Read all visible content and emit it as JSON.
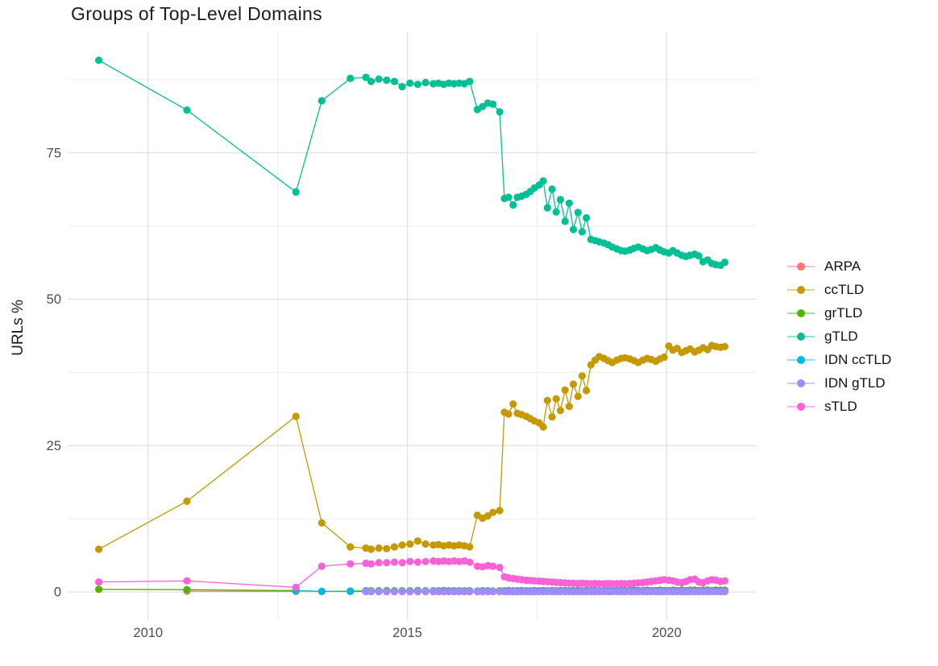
{
  "title": "Groups of Top-Level Domains",
  "axes": {
    "y_title": "URLs %",
    "x_tick_labels": [
      "2010",
      "2015",
      "2020"
    ],
    "y_tick_labels": [
      "0",
      "25",
      "50",
      "75"
    ]
  },
  "style": {
    "grid_major_color": "#e2e2e2",
    "grid_minor_color": "#f0f0f0",
    "axis_text_color": "#4d4d4d",
    "text_color": "#1c1c1c"
  },
  "chart_data": {
    "type": "line",
    "title": "Groups of Top-Level Domains",
    "xlabel": "",
    "ylabel": "URLs %",
    "legend_position": "right",
    "grid": true,
    "x_ticks": [
      2010,
      2015,
      2020
    ],
    "x_minor": [
      2012.5,
      2017.5
    ],
    "y_ticks": [
      0,
      25,
      50,
      75
    ],
    "y_minor": [
      12.5,
      37.5,
      62.5,
      87.5
    ],
    "xlim": [
      2008.45,
      2021.72
    ],
    "ylim": [
      -4.8,
      95.6
    ],
    "x": [
      2009.05,
      2010.75,
      2012.85,
      2013.35,
      2013.9,
      2014.2,
      2014.3,
      2014.45,
      2014.6,
      2014.75,
      2014.9,
      2015.05,
      2015.2,
      2015.35,
      2015.5,
      2015.6,
      2015.7,
      2015.8,
      2015.9,
      2016.0,
      2016.1,
      2016.2,
      2016.35,
      2016.45,
      2016.55,
      2016.65,
      2016.78,
      2016.87,
      2016.95,
      2017.04,
      2017.12,
      2017.2,
      2017.29,
      2017.37,
      2017.45,
      2017.54,
      2017.62,
      2017.7,
      2017.79,
      2017.87,
      2017.95,
      2018.04,
      2018.12,
      2018.2,
      2018.29,
      2018.37,
      2018.45,
      2018.54,
      2018.62,
      2018.7,
      2018.79,
      2018.87,
      2018.95,
      2019.04,
      2019.12,
      2019.2,
      2019.29,
      2019.37,
      2019.45,
      2019.54,
      2019.62,
      2019.7,
      2019.79,
      2019.87,
      2019.95,
      2020.04,
      2020.12,
      2020.2,
      2020.29,
      2020.37,
      2020.45,
      2020.54,
      2020.62,
      2020.7,
      2020.79,
      2020.87,
      2020.95,
      2021.04,
      2021.12
    ],
    "series": [
      {
        "name": "ARPA",
        "color": "#F8766D",
        "values": [
          null,
          0.15,
          0.1,
          null,
          null,
          null,
          null,
          null,
          null,
          null,
          null,
          null,
          null,
          null,
          null,
          null,
          null,
          null,
          null,
          null,
          null,
          null,
          null,
          null,
          null,
          null,
          null,
          null,
          null,
          null,
          null,
          null,
          null,
          null,
          null,
          null,
          null,
          null,
          null,
          null,
          null,
          null,
          null,
          null,
          null,
          null,
          null,
          null,
          null,
          null,
          null,
          null,
          null,
          null,
          null,
          null,
          null,
          null,
          null,
          null,
          null,
          null,
          null,
          null,
          null,
          null,
          null,
          null,
          null,
          null,
          null,
          null,
          null,
          null,
          null,
          null,
          null,
          null,
          null
        ]
      },
      {
        "name": "ccTLD",
        "color": "#C49A00",
        "values": [
          7.3,
          15.5,
          30.0,
          11.8,
          7.7,
          7.5,
          7.3,
          7.5,
          7.4,
          7.7,
          8.0,
          8.2,
          8.7,
          8.2,
          8.0,
          8.1,
          7.9,
          8.0,
          7.9,
          8.0,
          7.9,
          7.7,
          13.1,
          12.6,
          13.0,
          13.6,
          13.9,
          30.7,
          30.4,
          32.1,
          30.5,
          30.3,
          30.0,
          29.6,
          29.2,
          28.9,
          28.2,
          32.7,
          29.9,
          33.0,
          31.0,
          34.5,
          31.7,
          35.5,
          33.4,
          36.9,
          34.4,
          38.8,
          39.6,
          40.2,
          39.9,
          39.5,
          39.2,
          39.6,
          39.9,
          40.0,
          39.8,
          39.5,
          39.2,
          39.6,
          39.9,
          39.7,
          39.4,
          39.8,
          40.1,
          42.0,
          41.3,
          41.6,
          40.9,
          41.2,
          41.5,
          41.0,
          41.3,
          41.7,
          41.4,
          42.1,
          41.9,
          41.8,
          41.9
        ]
      },
      {
        "name": "grTLD",
        "color": "#53B400",
        "values": [
          0.45,
          0.4,
          0.25,
          0.1,
          0.15,
          0.2,
          0.2,
          0.2,
          0.25,
          0.2,
          0.2,
          0.2,
          0.25,
          0.2,
          0.2,
          0.2,
          0.25,
          0.2,
          0.2,
          0.2,
          0.2,
          0.2,
          0.15,
          0.2,
          0.2,
          0.15,
          0.2,
          0.2,
          0.25,
          0.2,
          0.2,
          0.25,
          0.2,
          0.2,
          0.25,
          0.2,
          0.25,
          0.2,
          0.25,
          0.2,
          0.25,
          0.25,
          0.2,
          0.25,
          0.25,
          0.2,
          0.25,
          0.25,
          0.25,
          0.2,
          0.25,
          0.25,
          0.25,
          0.25,
          0.25,
          0.25,
          0.25,
          0.3,
          0.25,
          0.25,
          0.3,
          0.25,
          0.25,
          0.3,
          0.25,
          0.25,
          0.3,
          0.25,
          0.3,
          0.25,
          0.3,
          0.3,
          0.25,
          0.3,
          0.3,
          0.25,
          0.3,
          0.3,
          0.3
        ]
      },
      {
        "name": "gTLD",
        "color": "#00C094",
        "values": [
          90.8,
          82.3,
          68.3,
          83.9,
          87.7,
          87.9,
          87.2,
          87.6,
          87.4,
          87.2,
          86.3,
          86.9,
          86.7,
          87.0,
          86.8,
          86.9,
          86.7,
          86.9,
          86.8,
          86.9,
          86.8,
          87.2,
          82.4,
          82.9,
          83.5,
          83.3,
          82.0,
          67.2,
          67.4,
          66.1,
          67.4,
          67.6,
          67.9,
          68.4,
          69.0,
          69.5,
          70.2,
          65.6,
          68.8,
          64.9,
          67.0,
          63.3,
          66.4,
          61.9,
          64.8,
          61.5,
          63.9,
          60.2,
          60.0,
          59.8,
          59.6,
          59.3,
          58.9,
          58.6,
          58.3,
          58.2,
          58.4,
          58.7,
          58.9,
          58.6,
          58.3,
          58.5,
          58.8,
          58.4,
          58.1,
          57.9,
          58.3,
          57.9,
          57.5,
          57.3,
          57.5,
          57.7,
          57.4,
          56.4,
          56.7,
          56.1,
          55.9,
          55.8,
          56.3
        ]
      },
      {
        "name": "IDN ccTLD",
        "color": "#00B6EB",
        "values": [
          null,
          null,
          0.2,
          0.1,
          0.1,
          0.1,
          0.1,
          0.1,
          0.1,
          0.1,
          0.1,
          0.1,
          0.1,
          0.1,
          0.1,
          0.1,
          0.1,
          0.1,
          0.1,
          0.1,
          0.1,
          0.1,
          0.1,
          0.1,
          0.1,
          0.1,
          0.1,
          0.1,
          0.1,
          0.1,
          0.1,
          0.1,
          0.1,
          0.1,
          0.1,
          0.1,
          0.1,
          0.1,
          0.1,
          0.1,
          0.1,
          0.1,
          0.1,
          0.1,
          0.1,
          0.1,
          0.1,
          0.1,
          0.1,
          0.1,
          0.1,
          0.1,
          0.1,
          0.1,
          0.1,
          0.1,
          0.1,
          0.1,
          0.1,
          0.1,
          0.1,
          0.1,
          0.1,
          0.1,
          0.1,
          0.1,
          0.1,
          0.1,
          0.1,
          0.1,
          0.1,
          0.1,
          0.1,
          0.1,
          0.1,
          0.1,
          0.1,
          0.1,
          0.1
        ]
      },
      {
        "name": "IDN gTLD",
        "color": "#A58AFF",
        "values": [
          null,
          null,
          null,
          null,
          null,
          0.05,
          0.05,
          0.05,
          0.05,
          0.05,
          0.05,
          0.05,
          0.05,
          0.05,
          0.05,
          0.05,
          0.05,
          0.05,
          0.05,
          0.05,
          0.05,
          0.05,
          0.05,
          0.05,
          0.05,
          0.05,
          0.05,
          0.05,
          0.05,
          0.05,
          0.05,
          0.05,
          0.05,
          0.05,
          0.05,
          0.05,
          0.05,
          0.05,
          0.05,
          0.05,
          0.05,
          0.05,
          0.05,
          0.05,
          0.05,
          0.05,
          0.05,
          0.05,
          0.05,
          0.05,
          0.05,
          0.05,
          0.05,
          0.05,
          0.05,
          0.05,
          0.05,
          0.05,
          0.05,
          0.05,
          0.05,
          0.05,
          0.05,
          0.05,
          0.05,
          0.05,
          0.05,
          0.05,
          0.05,
          0.05,
          0.05,
          0.05,
          0.05,
          0.05,
          0.05,
          0.05,
          0.05,
          0.05,
          0.05
        ]
      },
      {
        "name": "sTLD",
        "color": "#FB61D7",
        "values": [
          1.7,
          1.9,
          0.8,
          4.4,
          4.8,
          4.9,
          4.8,
          5.0,
          5.0,
          5.1,
          5.0,
          5.2,
          5.1,
          5.2,
          5.3,
          5.2,
          5.3,
          5.2,
          5.3,
          5.2,
          5.3,
          5.1,
          4.4,
          4.3,
          4.5,
          4.4,
          4.2,
          2.6,
          2.4,
          2.3,
          2.2,
          2.1,
          2.0,
          1.95,
          1.9,
          1.85,
          1.8,
          1.75,
          1.7,
          1.65,
          1.6,
          1.55,
          1.5,
          1.5,
          1.45,
          1.5,
          1.45,
          1.4,
          1.45,
          1.4,
          1.4,
          1.45,
          1.4,
          1.4,
          1.45,
          1.4,
          1.45,
          1.5,
          1.55,
          1.6,
          1.7,
          1.8,
          1.9,
          2.0,
          2.1,
          2.0,
          1.9,
          1.7,
          1.6,
          1.8,
          2.1,
          2.2,
          1.7,
          1.6,
          1.9,
          2.1,
          2.0,
          1.8,
          1.9
        ]
      }
    ]
  }
}
